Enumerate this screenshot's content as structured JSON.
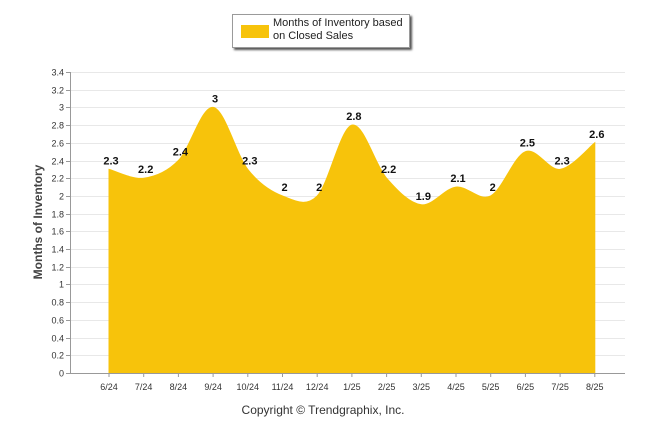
{
  "colors": {
    "area": "#f7c30b",
    "grid": "#e8e8e8",
    "axis": "#999999"
  },
  "legend": {
    "label": "Months of Inventory based on Closed Sales"
  },
  "footer": {
    "copyright": "Copyright © Trendgraphix, Inc."
  },
  "chart_data": {
    "type": "area",
    "ylabel": "Months of Inventory",
    "xlabel": "",
    "ylim": [
      0,
      3.4
    ],
    "ytick_step": 0.2,
    "yticks": [
      "0",
      "0.2",
      "0.4",
      "0.6",
      "0.8",
      "1",
      "1.2",
      "1.4",
      "1.6",
      "1.8",
      "2",
      "2.2",
      "2.4",
      "2.6",
      "2.8",
      "3",
      "3.2",
      "3.4"
    ],
    "grid": true,
    "legend_position": "top-center",
    "categories": [
      "6/24",
      "7/24",
      "8/24",
      "9/24",
      "10/24",
      "11/24",
      "12/24",
      "1/25",
      "2/25",
      "3/25",
      "4/25",
      "5/25",
      "6/25",
      "7/25",
      "8/25"
    ],
    "series": [
      {
        "name": "Months of Inventory based on Closed Sales",
        "values": [
          2.3,
          2.2,
          2.4,
          3,
          2.3,
          2,
          2,
          2.8,
          2.2,
          1.9,
          2.1,
          2,
          2.5,
          2.3,
          2.6
        ],
        "labels": [
          "2.3",
          "2.2",
          "2.4",
          "3",
          "2.3",
          "2",
          "2",
          "2.8",
          "2.2",
          "1.9",
          "2.1",
          "2",
          "2.5",
          "2.3",
          "2.6"
        ]
      }
    ]
  }
}
